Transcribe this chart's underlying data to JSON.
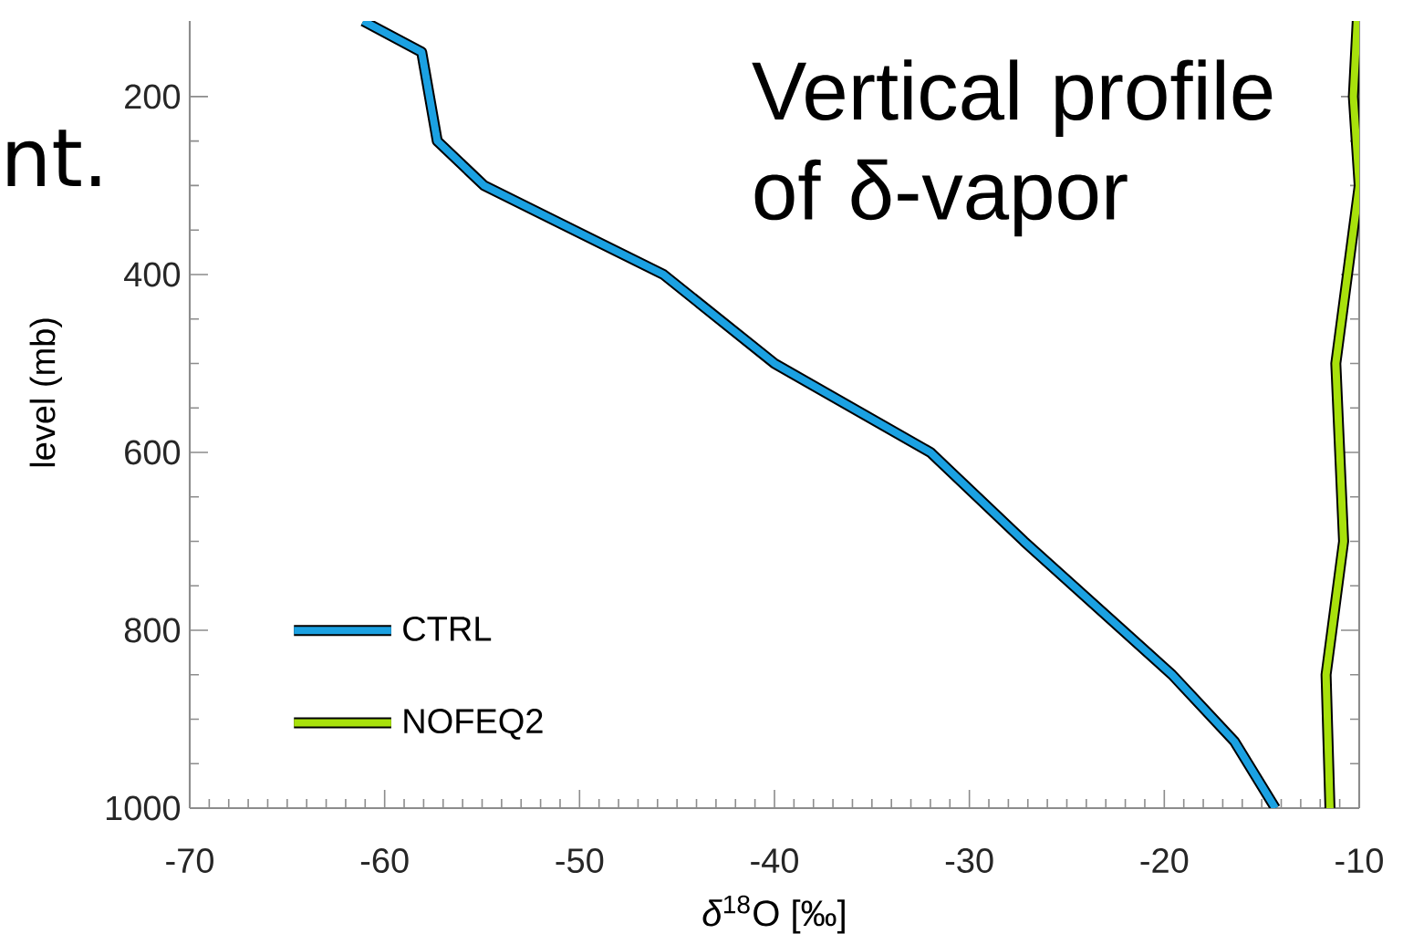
{
  "chart_data": {
    "type": "line",
    "title": "Vertical profile of δ-vapor",
    "xlabel": "*δ*$^{18}$O [‰]",
    "ylabel": "level (mb)",
    "annotations": [
      "nt."
    ],
    "series": [
      {
        "name": "CTRL",
        "color": "#1ba1e2",
        "x": [
          -61.1,
          -58.1,
          -57.7,
          -57.3,
          -54.9,
          -45.7,
          -40.0,
          -32.0,
          -27.2,
          -19.6,
          -16.4,
          -14.3
        ],
        "values": [
          115,
          150,
          200,
          250,
          300,
          400,
          500,
          600,
          700,
          850,
          925,
          1000
        ]
      },
      {
        "name": "NOFEQ2",
        "color": "#a8e10c",
        "x": [
          -10.1,
          -10.3,
          -10.0,
          -11.2,
          -10.8,
          -11.7,
          -11.5
        ],
        "values": [
          115,
          200,
          300,
          500,
          700,
          850,
          1000
        ]
      }
    ],
    "xlim": [
      -70,
      -10
    ],
    "xticks": [
      -70,
      -60,
      -50,
      -40,
      -30,
      -20,
      -10
    ],
    "ylim": [
      1000,
      115
    ],
    "yticks": [
      200,
      400,
      600,
      800,
      1000
    ],
    "legend": "bottom left"
  }
}
